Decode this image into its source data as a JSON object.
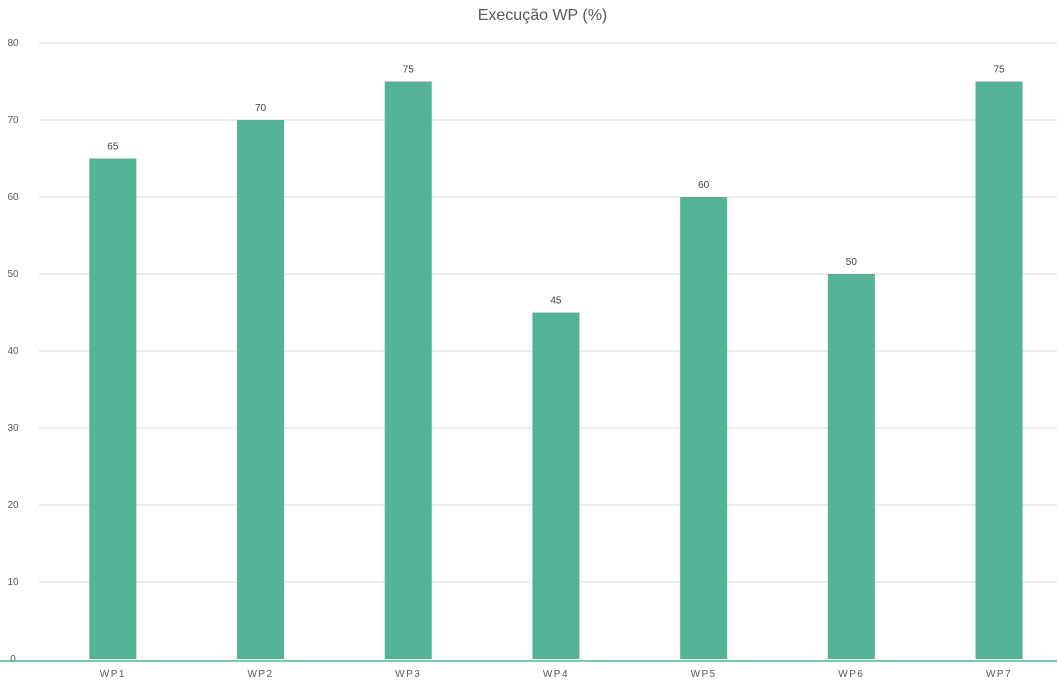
{
  "chart_data": {
    "type": "bar",
    "title": "Execução WP (%)",
    "xlabel": "",
    "ylabel": "",
    "categories": [
      "WP1",
      "WP2",
      "WP3",
      "WP4",
      "WP5",
      "WP6",
      "WP7"
    ],
    "values": [
      65,
      70,
      75,
      45,
      60,
      50,
      75
    ],
    "ylim": [
      0,
      80
    ],
    "yticks": [
      0,
      10,
      20,
      30,
      40,
      50,
      60,
      70,
      80
    ],
    "grid": true,
    "legend": "none",
    "data_labels": true,
    "colors": {
      "bar": "#52b396",
      "axis_line": "#52b396",
      "grid": "#d9d9d9",
      "text": "#595959"
    }
  }
}
